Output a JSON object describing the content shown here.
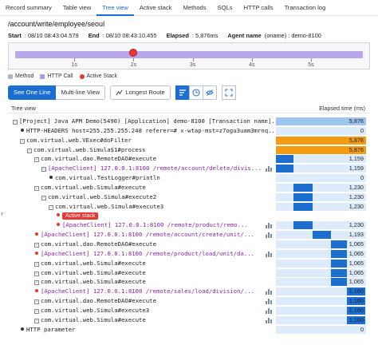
{
  "tabs": [
    "Record summary",
    "Table view",
    "Tree view",
    "Active stack",
    "Methods",
    "SQLs",
    "HTTP calls",
    "Transaction log"
  ],
  "active_tab": 2,
  "url": "/account/write/employee/seoul",
  "info": {
    "start_label": "Start",
    "start": ": 08/10 08:43:04.579",
    "end_label": "End",
    "end": ": 08/10 08:43:10.455",
    "elapsed_label": "Elapsed",
    "elapsed": ": 5,876ms",
    "agent_label": "Agent name",
    "agent": "(oname) : demo-8100"
  },
  "timeline": {
    "tick_labels": [
      "1s",
      "2s",
      "3s",
      "4s",
      "5s"
    ],
    "active_stack_at_seconds": 2.0,
    "bar_color": "#b9a7ee"
  },
  "legend": [
    {
      "label": "Method",
      "color": "#b0b8c4",
      "shape": "square"
    },
    {
      "label": "HTTP Call",
      "color": "#a79bea",
      "shape": "square"
    },
    {
      "label": "Active Stack",
      "color": "#e53935",
      "shape": "dot"
    }
  ],
  "toolbar": {
    "see_one_line": "See One Line",
    "multi_line": "Multi-line View",
    "longest_route": "Longest Route"
  },
  "tree_header": {
    "left": "Tree view",
    "right": "Elapsed time (ms)"
  },
  "total_ms": 5876,
  "rows": [
    {
      "indent": 0,
      "toggle": "-",
      "text": "[Project] Java APM Demo(5490) [Application] demo-8100 [Transaction name]...",
      "value": "5,876",
      "start": 0,
      "dur": 5876,
      "color": "#9fc6ee",
      "chart": false,
      "purple": false
    },
    {
      "indent": 1,
      "bullet": true,
      "text": "HTTP-HEADERS host=255.255.255.248 referer=# x-wtap-mst=z7ogu3uam3mrnq...",
      "value": "0",
      "start": 0,
      "dur": 0,
      "color": "#1c6fd1",
      "chart": false,
      "purple": false
    },
    {
      "indent": 1,
      "toggle": "-",
      "text": "com.virtual.web.VExec#doFilter",
      "value": "5,876",
      "start": 0,
      "dur": 5876,
      "color": "#f39c12",
      "chart": false,
      "purple": false
    },
    {
      "indent": 2,
      "toggle": "-",
      "text": "com.virtual.web.Simula$1#process",
      "value": "5,876",
      "start": 0,
      "dur": 5876,
      "color": "#f39c12",
      "chart": false,
      "purple": false
    },
    {
      "indent": 3,
      "toggle": "-",
      "text": "com.virtual.dao.RemoteDAO#execute",
      "value": "1,159",
      "start": 0,
      "dur": 1159,
      "color": "#1c6fd1",
      "chart": false,
      "purple": false
    },
    {
      "indent": 4,
      "toggle": "-",
      "text": "[ApacheClient] 127.0.0.1:8100 /remote/account/delete/divis...",
      "value": "1,159",
      "start": 0,
      "dur": 1159,
      "color": "#1c6fd1",
      "chart": true,
      "purple": true
    },
    {
      "indent": 5,
      "bullet": true,
      "text": "com.virtual.TestLogger#println",
      "value": "0",
      "start": 0,
      "dur": 0,
      "color": "#1c6fd1",
      "chart": false,
      "purple": false
    },
    {
      "indent": 3,
      "toggle": "-",
      "text": "com.virtual.web.Simula#execute",
      "value": "1,230",
      "start": 1159,
      "dur": 1230,
      "color": "#1c6fd1",
      "chart": false,
      "purple": false
    },
    {
      "indent": 4,
      "toggle": "-",
      "text": "com.virtual.web.Simula#execute2",
      "value": "1,230",
      "start": 1159,
      "dur": 1230,
      "color": "#1c6fd1",
      "chart": false,
      "purple": false
    },
    {
      "indent": 5,
      "toggle": "-",
      "text": "com.virtual.web.Simula#execute3",
      "value": "1,230",
      "start": 1159,
      "dur": 1230,
      "color": "#1c6fd1",
      "chart": false,
      "purple": false
    },
    {
      "indent": 6,
      "bullet": true,
      "red": true,
      "badge": "Active stack",
      "text": "",
      "value": "",
      "start": 0,
      "dur": 0,
      "color": "#1c6fd1",
      "chart": false,
      "purple": false
    },
    {
      "indent": 6,
      "bullet": true,
      "red": true,
      "text": "[ApacheClient] 127.0.0.1:8100 /remote/product/remo...",
      "value": "1,230",
      "start": 1159,
      "dur": 1230,
      "color": "#1c6fd1",
      "chart": true,
      "purple": true
    },
    {
      "indent": 3,
      "bullet": true,
      "red": true,
      "text": "[ApacheClient] 127.0.0.1:8100 /remote/account/create/unit/...",
      "value": "1,193",
      "start": 2389,
      "dur": 1193,
      "color": "#1c6fd1",
      "chart": true,
      "purple": true
    },
    {
      "indent": 3,
      "toggle": "-",
      "text": "com.virtual.dao.RemoteDAO#execute",
      "value": "1,065",
      "start": 3582,
      "dur": 1065,
      "color": "#1c6fd1",
      "chart": false,
      "purple": false
    },
    {
      "indent": 3,
      "bullet": true,
      "red": true,
      "text": "[ApacheClient] 127.0.0.1:8100 /remote/product/load/unit/da...",
      "value": "1,065",
      "start": 3582,
      "dur": 1065,
      "color": "#1c6fd1",
      "chart": true,
      "purple": true
    },
    {
      "indent": 3,
      "toggle": "-",
      "text": "com.virtual.web.Simula#execute",
      "value": "1,065",
      "start": 3582,
      "dur": 1065,
      "color": "#1c6fd1",
      "chart": false,
      "purple": false
    },
    {
      "indent": 3,
      "toggle": "-",
      "text": "com.virtual.web.Simula#execute",
      "value": "1,065",
      "start": 3582,
      "dur": 1065,
      "color": "#1c6fd1",
      "chart": false,
      "purple": false
    },
    {
      "indent": 3,
      "toggle": "-",
      "text": "com.virtual.web.Simula#execute",
      "value": "1,065",
      "start": 3582,
      "dur": 1065,
      "color": "#1c6fd1",
      "chart": false,
      "purple": false
    },
    {
      "indent": 3,
      "bullet": true,
      "red": true,
      "text": "[ApacheClient] 127.0.0.1:8100 /remote/sales/load/division/...",
      "value": "1,160",
      "start": 4647,
      "dur": 1160,
      "color": "#1c6fd1",
      "chart": true,
      "purple": true
    },
    {
      "indent": 3,
      "toggle": "-",
      "text": "com.virtual.dao.RemoteDAO#execute",
      "value": "1,160",
      "start": 4647,
      "dur": 1160,
      "color": "#1c6fd1",
      "chart": true,
      "purple": false
    },
    {
      "indent": 3,
      "toggle": "-",
      "text": "com.virtual.web.Simula#execute3",
      "value": "1,160",
      "start": 4647,
      "dur": 1160,
      "color": "#1c6fd1",
      "chart": true,
      "purple": false
    },
    {
      "indent": 3,
      "toggle": "-",
      "text": "com.virtual.web.Simula#execute",
      "value": "1,160",
      "start": 4647,
      "dur": 1160,
      "color": "#1c6fd1",
      "chart": true,
      "purple": false
    },
    {
      "indent": 1,
      "bullet": true,
      "text": "HTTP parameter",
      "value": "0",
      "start": 0,
      "dur": 0,
      "color": "#1c6fd1",
      "chart": false,
      "purple": false
    }
  ]
}
